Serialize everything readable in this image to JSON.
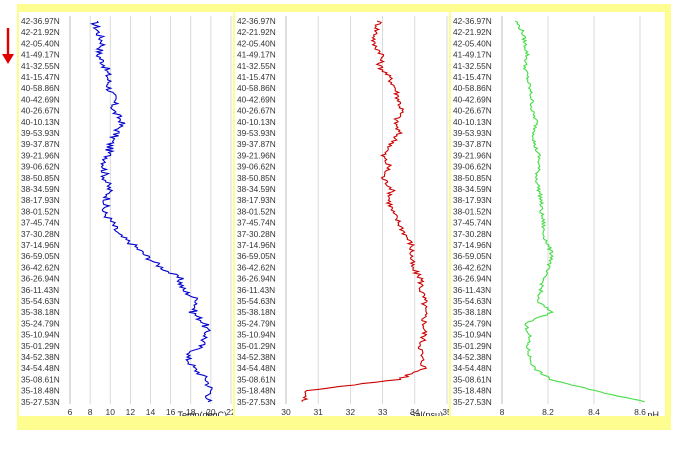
{
  "theme": {
    "frame_bg": "#fdfd90",
    "arrow_color": "#e00000"
  },
  "chart_data": [
    {
      "type": "line",
      "series": [
        {
          "color": "#0000cc"
        }
      ],
      "xlabel": "Temp(degC)",
      "xlim": [
        6,
        22
      ],
      "xticks": [
        "6",
        "8",
        "10",
        "12",
        "14",
        "16",
        "18",
        "20",
        "22"
      ],
      "yticks": [
        "42-36.97N",
        "42-21.92N",
        "42-05.40N",
        "41-49.17N",
        "41-32.55N",
        "41-15.47N",
        "40-58.86N",
        "40-42.69N",
        "40-26.67N",
        "40-10.13N",
        "39-53.93N",
        "39-37.87N",
        "39-21.96N",
        "39-06.62N",
        "38-50.85N",
        "38-34.59N",
        "38-17.93N",
        "38-01.52N",
        "37-45.74N",
        "37-30.28N",
        "37-14.96N",
        "36-59.05N",
        "36-42.62N",
        "36-26.94N",
        "36-11.43N",
        "35-54.63N",
        "35-38.18N",
        "35-24.79N",
        "35-10.94N",
        "35-01.29N",
        "34-52.38N",
        "34-54.48N",
        "35-08.61N",
        "35-18.48N",
        "35-27.53N"
      ],
      "profile": [
        [
          8.4,
          0
        ],
        [
          8.8,
          1
        ],
        [
          9.3,
          2
        ],
        [
          8.8,
          3
        ],
        [
          9.5,
          4
        ],
        [
          9.8,
          5
        ],
        [
          9.9,
          6
        ],
        [
          10.4,
          7
        ],
        [
          10.3,
          8
        ],
        [
          11.2,
          9
        ],
        [
          10.6,
          10
        ],
        [
          10.0,
          11
        ],
        [
          9.8,
          12
        ],
        [
          9.4,
          13
        ],
        [
          9.5,
          14
        ],
        [
          9.9,
          15
        ],
        [
          9.7,
          16
        ],
        [
          9.3,
          17
        ],
        [
          10.2,
          18
        ],
        [
          10.7,
          19
        ],
        [
          12.3,
          20
        ],
        [
          13.6,
          21
        ],
        [
          15.1,
          22
        ],
        [
          16.9,
          23
        ],
        [
          17.2,
          24
        ],
        [
          18.8,
          25
        ],
        [
          18.2,
          26
        ],
        [
          19.4,
          27
        ],
        [
          19.6,
          28
        ],
        [
          19.0,
          29
        ],
        [
          17.6,
          30
        ],
        [
          18.3,
          31
        ],
        [
          19.6,
          32
        ],
        [
          20.0,
          33
        ],
        [
          19.7,
          34
        ]
      ]
    },
    {
      "type": "line",
      "series": [
        {
          "color": "#cc0000"
        }
      ],
      "xlabel": "Sal(psu)",
      "xlim": [
        30,
        35
      ],
      "xticks": [
        "30",
        "31",
        "32",
        "33",
        "34",
        "35"
      ],
      "yticks": [
        "42-36.97N",
        "42-21.92N",
        "42-05.40N",
        "41-49.17N",
        "41-32.55N",
        "41-15.47N",
        "40-58.86N",
        "40-42.69N",
        "40-26.67N",
        "40-10.13N",
        "39-53.93N",
        "39-37.87N",
        "39-21.96N",
        "39-06.62N",
        "38-50.85N",
        "38-34.59N",
        "38-17.93N",
        "38-01.52N",
        "37-45.74N",
        "37-30.28N",
        "37-14.96N",
        "36-59.05N",
        "36-42.62N",
        "36-26.94N",
        "36-11.43N",
        "35-54.63N",
        "35-38.18N",
        "35-24.79N",
        "35-10.94N",
        "35-01.29N",
        "34-52.38N",
        "34-54.48N",
        "35-08.61N",
        "35-18.48N",
        "35-27.53N"
      ],
      "profile": [
        [
          32.9,
          0
        ],
        [
          32.8,
          1
        ],
        [
          32.7,
          2
        ],
        [
          33.0,
          3
        ],
        [
          32.9,
          4
        ],
        [
          33.2,
          5
        ],
        [
          33.4,
          6
        ],
        [
          33.5,
          7
        ],
        [
          33.6,
          8
        ],
        [
          33.4,
          9
        ],
        [
          33.5,
          10
        ],
        [
          33.3,
          11
        ],
        [
          33.0,
          12
        ],
        [
          33.2,
          13
        ],
        [
          33.0,
          14
        ],
        [
          33.3,
          15
        ],
        [
          33.2,
          16
        ],
        [
          33.3,
          17
        ],
        [
          33.5,
          18
        ],
        [
          33.7,
          19
        ],
        [
          33.9,
          20
        ],
        [
          33.9,
          21
        ],
        [
          33.9,
          22
        ],
        [
          34.2,
          23
        ],
        [
          34.2,
          24
        ],
        [
          34.3,
          25
        ],
        [
          34.3,
          26
        ],
        [
          34.3,
          27
        ],
        [
          34.3,
          28
        ],
        [
          34.2,
          29
        ],
        [
          34.2,
          30
        ],
        [
          34.3,
          31
        ],
        [
          33.5,
          32
        ],
        [
          30.7,
          33
        ],
        [
          30.5,
          34
        ]
      ]
    },
    {
      "type": "line",
      "series": [
        {
          "color": "#44dd44"
        }
      ],
      "xlabel": "pH",
      "xlim": [
        8,
        8.7
      ],
      "xticks": [
        "8",
        "8.2",
        "8.4",
        "8.6"
      ],
      "yticks": [
        "42-36.97N",
        "42-21.92N",
        "42-05.40N",
        "41-49.17N",
        "41-32.55N",
        "41-15.47N",
        "40-58.86N",
        "40-42.69N",
        "40-26.67N",
        "40-10.13N",
        "39-53.93N",
        "39-37.87N",
        "39-21.96N",
        "39-06.62N",
        "38-50.85N",
        "38-34.59N",
        "38-17.93N",
        "38-01.52N",
        "37-45.74N",
        "37-30.28N",
        "37-14.96N",
        "36-59.05N",
        "36-42.62N",
        "36-26.94N",
        "36-11.43N",
        "35-54.63N",
        "35-38.18N",
        "35-24.79N",
        "35-10.94N",
        "35-01.29N",
        "34-52.38N",
        "34-54.48N",
        "35-08.61N",
        "35-18.48N",
        "35-27.53N"
      ],
      "profile": [
        [
          8.06,
          0
        ],
        [
          8.09,
          1
        ],
        [
          8.1,
          2
        ],
        [
          8.11,
          3
        ],
        [
          8.1,
          4
        ],
        [
          8.11,
          5
        ],
        [
          8.12,
          6
        ],
        [
          8.13,
          7
        ],
        [
          8.13,
          8
        ],
        [
          8.15,
          9
        ],
        [
          8.14,
          10
        ],
        [
          8.14,
          11
        ],
        [
          8.16,
          12
        ],
        [
          8.16,
          13
        ],
        [
          8.15,
          14
        ],
        [
          8.16,
          15
        ],
        [
          8.17,
          16
        ],
        [
          8.17,
          17
        ],
        [
          8.18,
          18
        ],
        [
          8.18,
          19
        ],
        [
          8.2,
          20
        ],
        [
          8.22,
          21
        ],
        [
          8.2,
          22
        ],
        [
          8.18,
          23
        ],
        [
          8.17,
          24
        ],
        [
          8.15,
          25
        ],
        [
          8.22,
          26
        ],
        [
          8.1,
          27
        ],
        [
          8.12,
          28
        ],
        [
          8.11,
          29
        ],
        [
          8.12,
          30
        ],
        [
          8.14,
          31
        ],
        [
          8.21,
          32
        ],
        [
          8.4,
          33
        ],
        [
          8.62,
          34
        ]
      ]
    }
  ]
}
